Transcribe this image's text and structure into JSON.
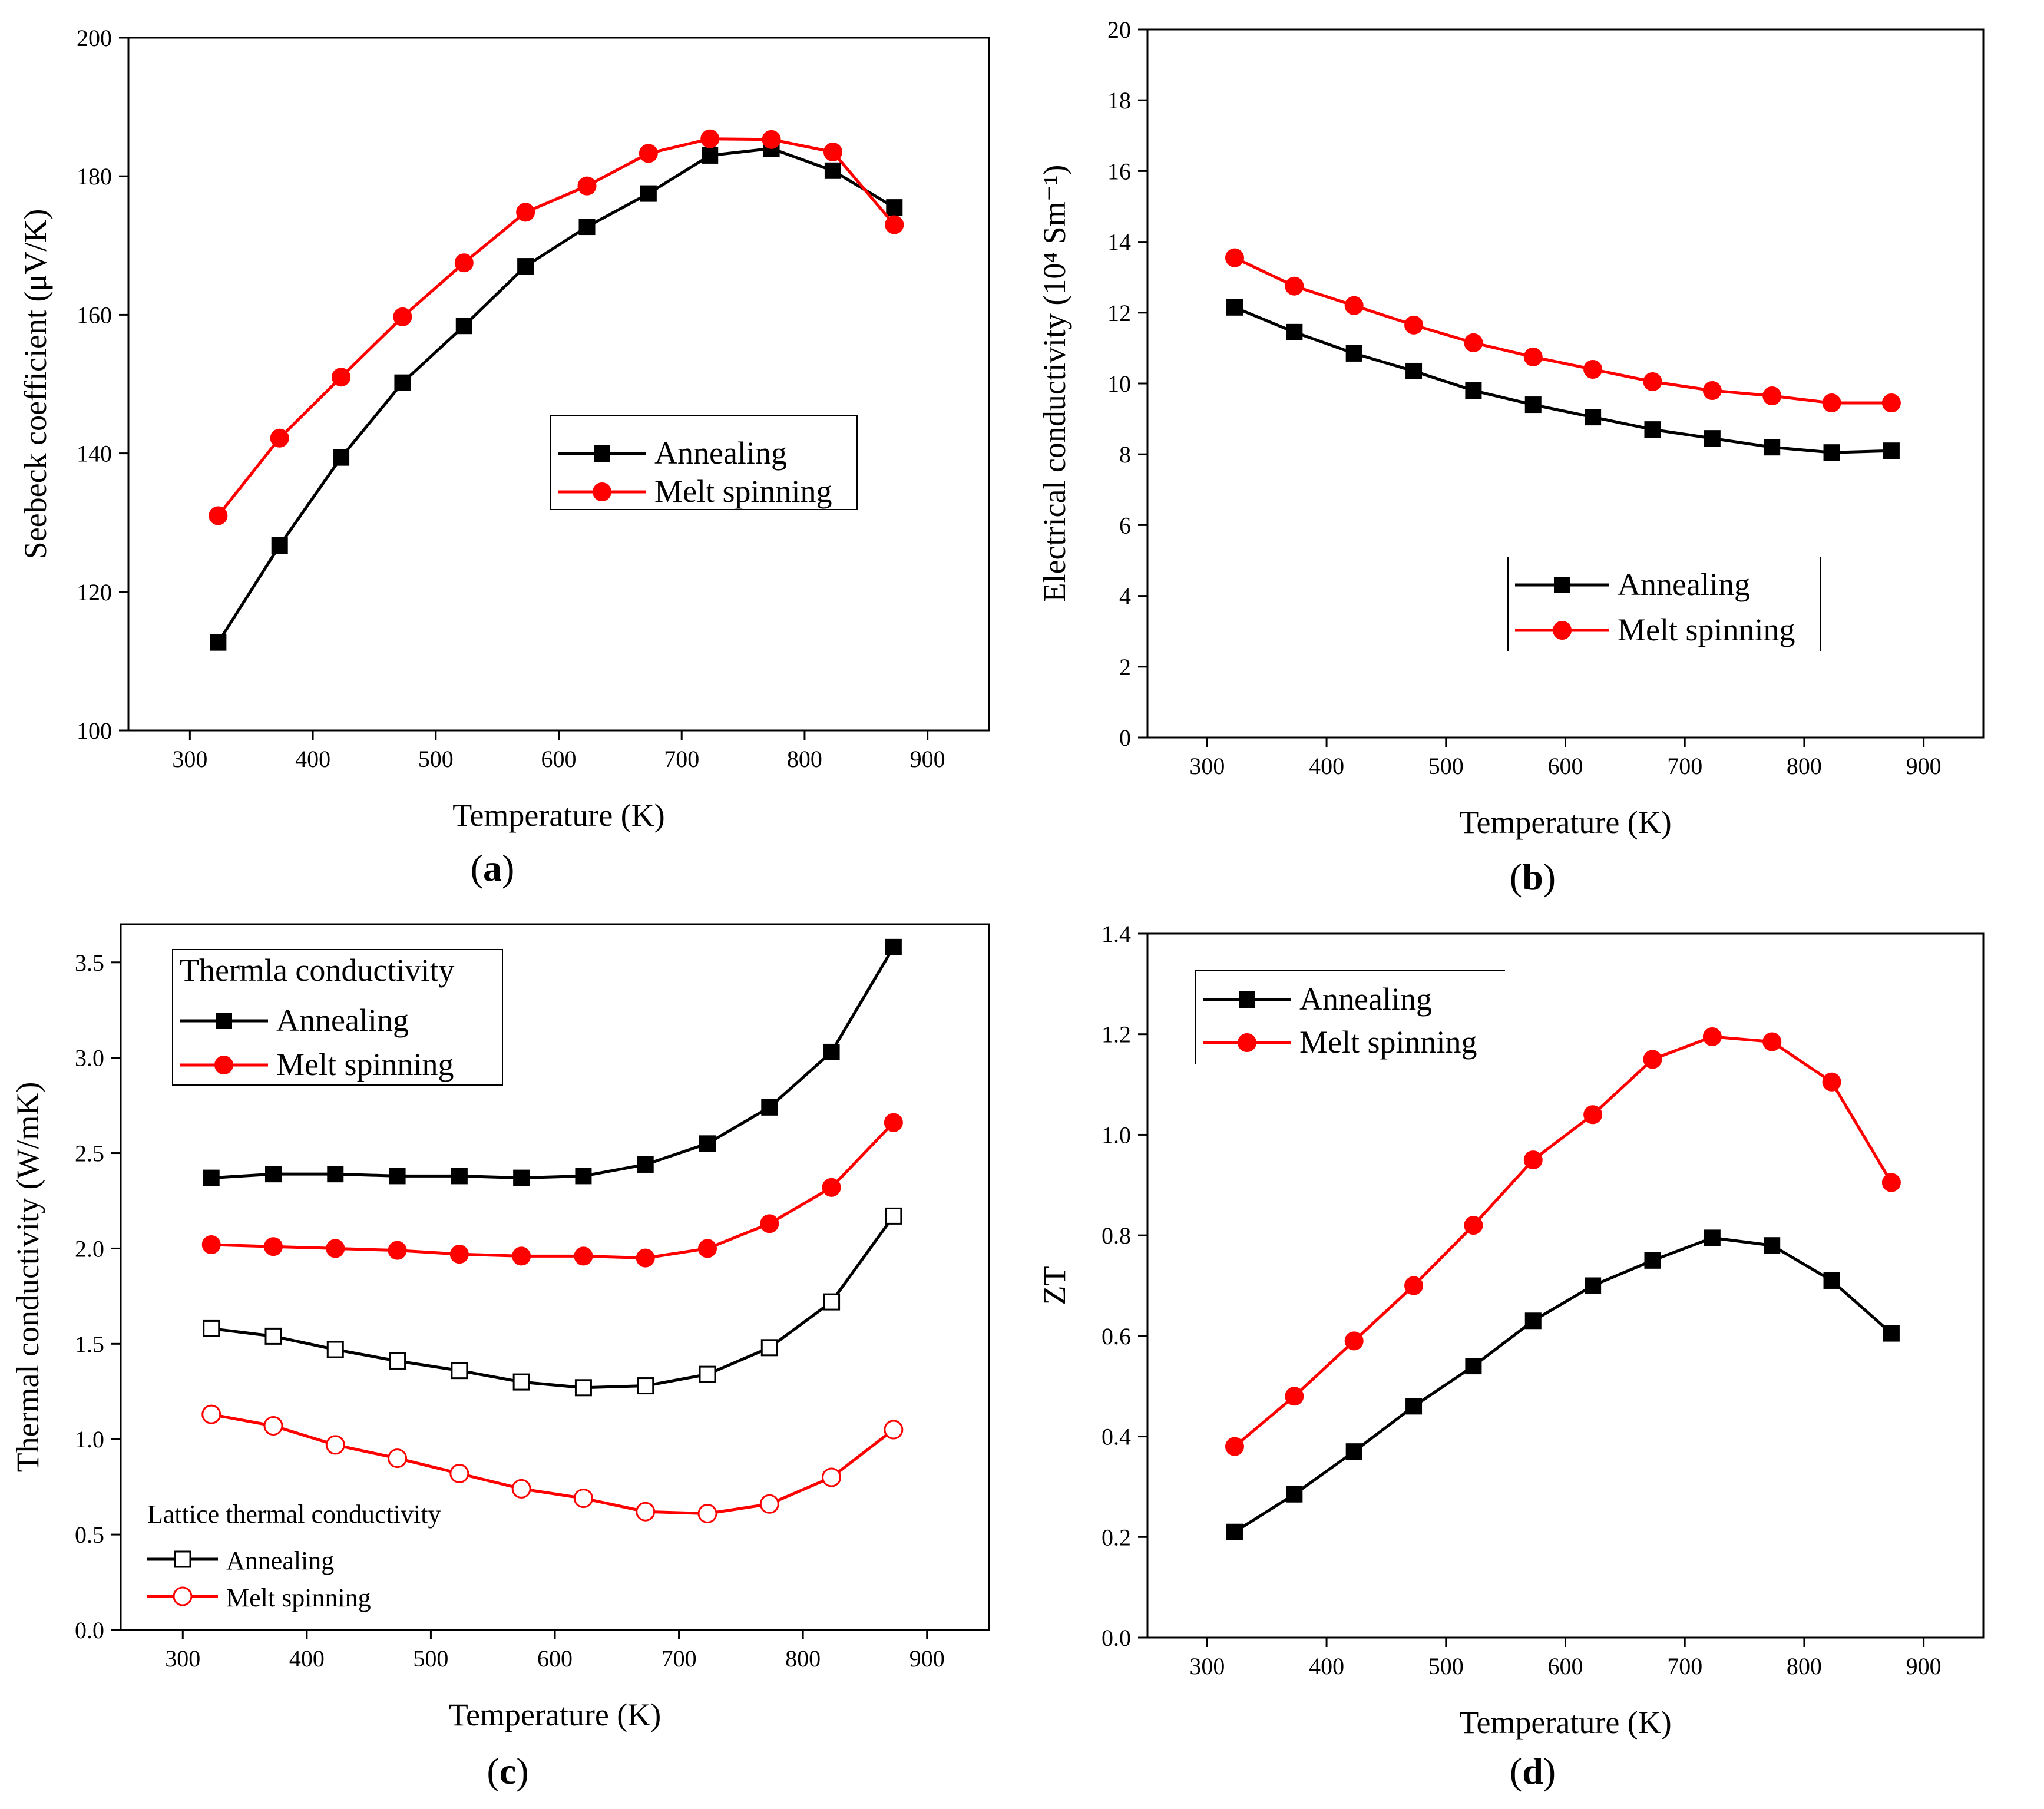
{
  "chart_data": [
    {
      "type": "line",
      "panel_label": "(a)",
      "panel_letter": "a",
      "xlabel": "Temperature (K)",
      "ylabel": "Seebeck coefficient (μV/K)",
      "xlim": [
        250,
        950
      ],
      "ylim": [
        100,
        200
      ],
      "xticks": [
        300,
        400,
        500,
        600,
        700,
        800,
        900
      ],
      "yticks": [
        100,
        120,
        140,
        160,
        180,
        200
      ],
      "legend": {
        "position": "center-right",
        "title": null,
        "entries": [
          "Annealing",
          "Melt spinning"
        ]
      },
      "series": [
        {
          "name": "Annealing",
          "color": "#000000",
          "marker": "square-filled",
          "x": [
            323,
            373,
            423,
            473,
            523,
            573,
            623,
            673,
            723,
            773,
            823,
            873
          ],
          "y": [
            112.7,
            126.7,
            139.4,
            150.2,
            158.4,
            167.0,
            172.7,
            177.5,
            183.0,
            184.0,
            180.8,
            175.5
          ]
        },
        {
          "name": "Melt spinning",
          "color": "#ff0000",
          "marker": "circle-filled",
          "x": [
            323,
            373,
            423,
            473,
            523,
            573,
            623,
            673,
            723,
            773,
            823,
            873
          ],
          "y": [
            131.0,
            142.2,
            151.0,
            159.7,
            167.5,
            174.8,
            178.6,
            183.3,
            185.4,
            185.3,
            183.5,
            173.0
          ]
        }
      ]
    },
    {
      "type": "line",
      "panel_label": "(b)",
      "panel_letter": "b",
      "xlabel": "Temperature (K)",
      "ylabel": "Electrical conductivity (10⁴ Sm⁻¹)",
      "xlim": [
        250,
        950
      ],
      "ylim": [
        0,
        20
      ],
      "xticks": [
        300,
        400,
        500,
        600,
        700,
        800,
        900
      ],
      "yticks": [
        0,
        2,
        4,
        6,
        8,
        10,
        12,
        14,
        16,
        18,
        20
      ],
      "legend": {
        "position": "center-right",
        "title": null,
        "entries": [
          "Annealing",
          "Melt spinning"
        ]
      },
      "series": [
        {
          "name": "Annealing",
          "color": "#000000",
          "marker": "square-filled",
          "x": [
            323,
            373,
            423,
            473,
            523,
            573,
            623,
            673,
            723,
            773,
            823,
            873
          ],
          "y": [
            12.15,
            11.45,
            10.85,
            10.35,
            9.8,
            9.4,
            9.05,
            8.7,
            8.45,
            8.2,
            8.05,
            8.1
          ]
        },
        {
          "name": "Melt spinning",
          "color": "#ff0000",
          "marker": "circle-filled",
          "x": [
            323,
            373,
            423,
            473,
            523,
            573,
            623,
            673,
            723,
            773,
            823,
            873
          ],
          "y": [
            13.55,
            12.75,
            12.2,
            11.65,
            11.15,
            10.75,
            10.4,
            10.05,
            9.8,
            9.65,
            9.45,
            9.45
          ]
        }
      ]
    },
    {
      "type": "line",
      "panel_label": "(c)",
      "panel_letter": "c",
      "xlabel": "Temperature (K)",
      "ylabel": "Thermal conductivity (W/mK)",
      "xlim": [
        250,
        950
      ],
      "ylim": [
        0,
        3.7
      ],
      "xticks": [
        300,
        400,
        500,
        600,
        700,
        800,
        900
      ],
      "yticks": [
        0.0,
        0.5,
        1.0,
        1.5,
        2.0,
        2.5,
        3.0,
        3.5
      ],
      "legends": [
        {
          "position": "top-left",
          "title": "Thermla conductivity",
          "entries": [
            "Annealing",
            "Melt spinning"
          ]
        },
        {
          "position": "bottom-left",
          "title": "Lattice thermal conductivity",
          "entries": [
            "Annealing",
            "Melt spinning"
          ]
        }
      ],
      "series": [
        {
          "name": "Thermal conductivity - Annealing",
          "color": "#000000",
          "marker": "square-filled",
          "x": [
            323,
            373,
            423,
            473,
            523,
            573,
            623,
            673,
            723,
            773,
            823,
            873
          ],
          "y": [
            2.37,
            2.39,
            2.39,
            2.38,
            2.38,
            2.37,
            2.38,
            2.44,
            2.55,
            2.74,
            3.03,
            3.58
          ]
        },
        {
          "name": "Thermal conductivity - Melt spinning",
          "color": "#ff0000",
          "marker": "circle-filled",
          "x": [
            323,
            373,
            423,
            473,
            523,
            573,
            623,
            673,
            723,
            773,
            823,
            873
          ],
          "y": [
            2.02,
            2.01,
            2.0,
            1.99,
            1.97,
            1.96,
            1.96,
            1.95,
            2.0,
            2.13,
            2.32,
            2.66
          ]
        },
        {
          "name": "Lattice thermal conductivity - Annealing",
          "color": "#000000",
          "marker": "square-open",
          "x": [
            323,
            373,
            423,
            473,
            523,
            573,
            623,
            673,
            723,
            773,
            823,
            873
          ],
          "y": [
            1.58,
            1.54,
            1.47,
            1.41,
            1.36,
            1.3,
            1.27,
            1.28,
            1.34,
            1.48,
            1.72,
            2.17
          ]
        },
        {
          "name": "Lattice thermal conductivity - Melt spinning",
          "color": "#ff0000",
          "marker": "circle-open",
          "x": [
            323,
            373,
            423,
            473,
            523,
            573,
            623,
            673,
            723,
            773,
            823,
            873
          ],
          "y": [
            1.13,
            1.07,
            0.97,
            0.9,
            0.82,
            0.74,
            0.69,
            0.62,
            0.61,
            0.66,
            0.8,
            1.05
          ]
        }
      ]
    },
    {
      "type": "line",
      "panel_label": "(d)",
      "panel_letter": "d",
      "xlabel": "Temperature (K)",
      "ylabel": "ZT",
      "xlim": [
        250,
        950
      ],
      "ylim": [
        0,
        1.4
      ],
      "xticks": [
        300,
        400,
        500,
        600,
        700,
        800,
        900
      ],
      "yticks": [
        0.0,
        0.2,
        0.4,
        0.6,
        0.8,
        1.0,
        1.2,
        1.4
      ],
      "legend": {
        "position": "top-left",
        "title": null,
        "entries": [
          "Annealing",
          "Melt spinning"
        ]
      },
      "series": [
        {
          "name": "Annealing",
          "color": "#000000",
          "marker": "square-filled",
          "x": [
            323,
            373,
            423,
            473,
            523,
            573,
            623,
            673,
            723,
            773,
            823,
            873
          ],
          "y": [
            0.21,
            0.285,
            0.37,
            0.46,
            0.54,
            0.63,
            0.7,
            0.75,
            0.795,
            0.78,
            0.71,
            0.605
          ]
        },
        {
          "name": "Melt spinning",
          "color": "#ff0000",
          "marker": "circle-filled",
          "x": [
            323,
            373,
            423,
            473,
            523,
            573,
            623,
            673,
            723,
            773,
            823,
            873
          ],
          "y": [
            0.38,
            0.48,
            0.59,
            0.7,
            0.82,
            0.95,
            1.04,
            1.15,
            1.195,
            1.185,
            1.105,
            0.905
          ]
        }
      ]
    }
  ]
}
